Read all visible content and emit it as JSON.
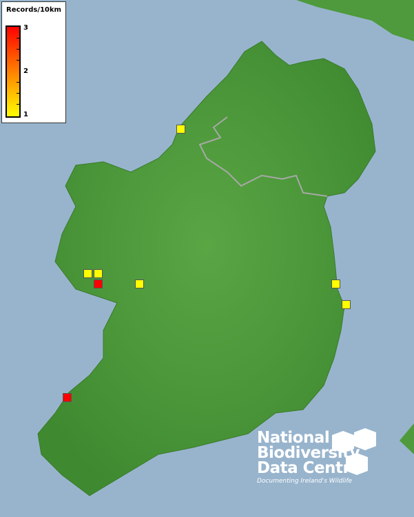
{
  "legend": {
    "title": "Records/10km",
    "max_label": "3",
    "mid_label": "2",
    "min_label": "1",
    "colors": {
      "max": "#ff0000",
      "mid": "#ff8000",
      "min": "#ffff00"
    }
  },
  "map": {
    "sea_color": "#98b4cd",
    "land_color": "#4e9a3c",
    "border_color": "#a0a0a0"
  },
  "records": [
    {
      "value": 1,
      "color": "#ffff00"
    },
    {
      "value": 1,
      "color": "#ffff00"
    },
    {
      "value": 1,
      "color": "#ffff00"
    },
    {
      "value": 3,
      "color": "#ff0000"
    },
    {
      "value": 1,
      "color": "#ffff00"
    },
    {
      "value": 1,
      "color": "#ffff00"
    },
    {
      "value": 1,
      "color": "#ffff00"
    },
    {
      "value": 3,
      "color": "#ff0000"
    }
  ],
  "logo": {
    "line1": "National",
    "line2": "Biodiversity",
    "line3": "Data Centre",
    "tagline": "Documenting Ireland's Wildlife"
  }
}
